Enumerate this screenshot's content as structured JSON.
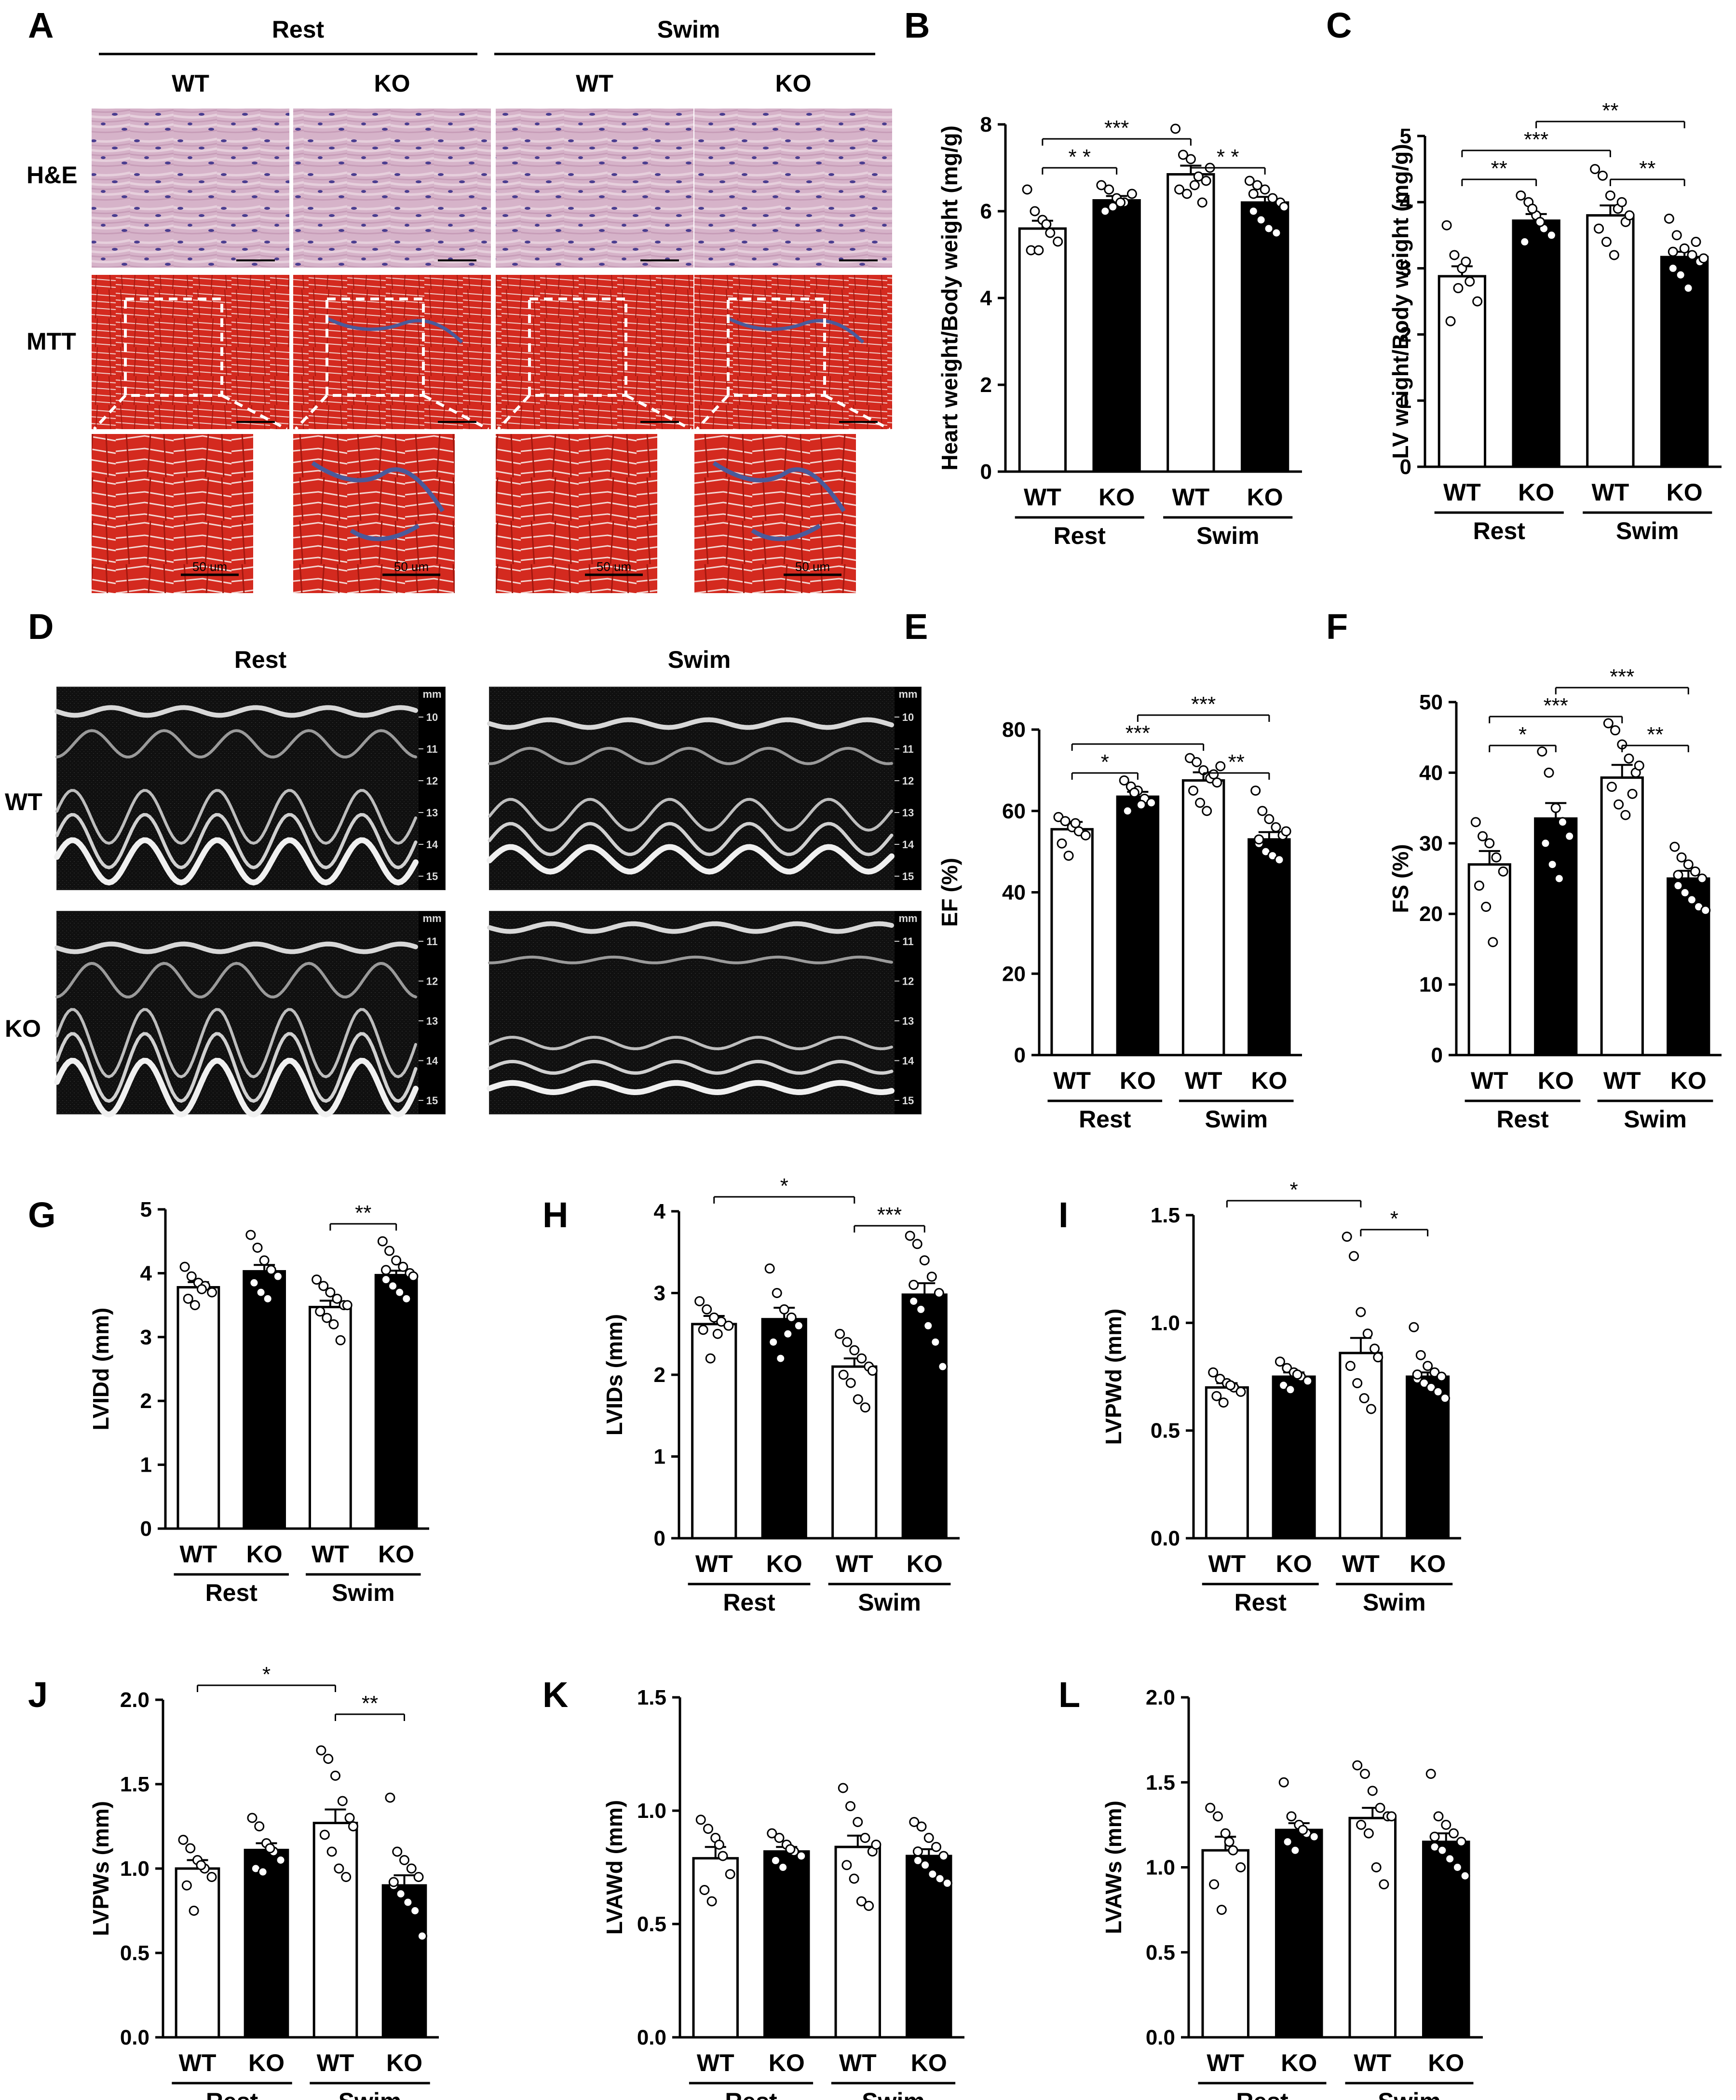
{
  "colors": {
    "wt_fill": "#ffffff",
    "ko_fill": "#000000",
    "axis": "#000000",
    "he_bg": "#d6b3c9",
    "he_nucleus": "#4a3d8f",
    "mtt_bg": "#d42a1f",
    "mtt_fiber": "#b31d14",
    "mtt_collagen": "#4a5a9a",
    "echo_bg": "#0b0b0b",
    "echo_wall": "#e8e8e8"
  },
  "panelA": {
    "label": "A",
    "groups": [
      "Rest",
      "Swim"
    ],
    "columns": [
      "WT",
      "KO",
      "WT",
      "KO"
    ],
    "rows": [
      "H&E",
      "MTT"
    ],
    "scale_bar_text": "50 um"
  },
  "panelD": {
    "label": "D",
    "columns": [
      "Rest",
      "Swim"
    ],
    "rows": [
      "WT",
      "KO"
    ],
    "mm_unit": "mm",
    "mm_ticks_top": [
      "10",
      "11",
      "12",
      "13",
      "14",
      "15"
    ],
    "mm_ticks_bottom_rest": [
      "11",
      "12",
      "13",
      "14",
      "15"
    ],
    "mm_ticks_bottom_swim": [
      "11",
      "12",
      "13",
      "14",
      "15"
    ]
  },
  "chart_data": [
    {
      "id": "B",
      "label": "B",
      "type": "bar",
      "ylabel": "Heart weight/Body weight (mg/g)",
      "ylim": [
        0,
        8
      ],
      "yticks": [
        "0",
        "2",
        "4",
        "6",
        "8"
      ],
      "categories": [
        "WT",
        "KO",
        "WT",
        "KO"
      ],
      "groups": [
        "Rest",
        "Swim"
      ],
      "values": [
        5.6,
        6.25,
        6.85,
        6.2
      ],
      "sem": [
        0.18,
        0.1,
        0.2,
        0.13
      ],
      "points": [
        [
          6.5,
          6.0,
          5.8,
          5.5,
          5.3,
          5.1,
          5.1,
          5.7
        ],
        [
          6.6,
          6.5,
          6.3,
          6.2,
          6.4,
          6.0,
          6.1,
          6.2
        ],
        [
          7.9,
          7.3,
          7.2,
          6.8,
          6.7,
          6.5,
          6.4,
          6.6,
          6.2,
          7.0
        ],
        [
          6.7,
          6.6,
          6.5,
          6.3,
          6.2,
          6.0,
          5.8,
          5.6,
          5.5,
          6.1,
          6.4
        ]
      ],
      "significance": [
        {
          "from": 0,
          "to": 1,
          "text": "* *",
          "level": 0
        },
        {
          "from": 0,
          "to": 2,
          "text": "***",
          "level": 1
        },
        {
          "from": 2,
          "to": 3,
          "text": "* *",
          "level": 0
        }
      ]
    },
    {
      "id": "C",
      "label": "C",
      "type": "bar",
      "ylabel": "LV weight/Body weight (mg/g)",
      "ylim": [
        0,
        5
      ],
      "yticks": [
        "0",
        "1",
        "2",
        "3",
        "4",
        "5"
      ],
      "categories": [
        "WT",
        "KO",
        "WT",
        "KO"
      ],
      "groups": [
        "Rest",
        "Swim"
      ],
      "values": [
        2.88,
        3.72,
        3.8,
        3.17
      ],
      "sem": [
        0.15,
        0.1,
        0.15,
        0.08
      ],
      "points": [
        [
          3.65,
          3.2,
          3.0,
          2.8,
          2.5,
          2.2,
          2.7,
          3.1
        ],
        [
          4.1,
          4.0,
          3.8,
          3.6,
          3.5,
          3.4,
          3.9,
          3.7
        ],
        [
          4.5,
          4.4,
          4.1,
          3.9,
          3.7,
          3.6,
          3.4,
          3.2,
          4.0,
          3.8
        ],
        [
          3.75,
          3.5,
          3.3,
          3.2,
          3.1,
          3.0,
          2.9,
          2.7,
          3.4,
          3.15,
          3.25
        ]
      ],
      "significance": [
        {
          "from": 0,
          "to": 1,
          "text": "**",
          "level": 0
        },
        {
          "from": 0,
          "to": 2,
          "text": "***",
          "level": 1
        },
        {
          "from": 2,
          "to": 3,
          "text": "**",
          "level": 0
        },
        {
          "from": 1,
          "to": 3,
          "text": "**",
          "level": 2
        }
      ]
    },
    {
      "id": "E",
      "label": "E",
      "type": "bar",
      "ylabel": "EF (%)",
      "ylim": [
        0,
        80
      ],
      "yticks": [
        "0",
        "20",
        "40",
        "60",
        "80"
      ],
      "categories": [
        "WT",
        "KO",
        "WT",
        "KO"
      ],
      "groups": [
        "Rest",
        "Swim"
      ],
      "values": [
        55.5,
        63.5,
        67.5,
        53
      ],
      "sem": [
        1.8,
        1.2,
        2.0,
        1.8
      ],
      "points": [
        [
          58.5,
          57.5,
          56.0,
          55.0,
          54.0,
          52.0,
          49.0,
          57.0
        ],
        [
          67.5,
          66.0,
          65.0,
          63.0,
          62.0,
          60.0,
          64.5,
          61.5
        ],
        [
          73.0,
          72.0,
          70.0,
          68.0,
          67.0,
          65.0,
          62.0,
          60.0,
          69.0,
          71.0
        ],
        [
          65.0,
          60.0,
          58.0,
          56.0,
          54.0,
          52.0,
          50.0,
          49.0,
          48.0,
          55.0,
          53.0
        ]
      ],
      "significance": [
        {
          "from": 0,
          "to": 1,
          "text": "*",
          "level": 0
        },
        {
          "from": 0,
          "to": 2,
          "text": "***",
          "level": 1
        },
        {
          "from": 2,
          "to": 3,
          "text": "**",
          "level": 0
        },
        {
          "from": 1,
          "to": 3,
          "text": "***",
          "level": 2
        }
      ]
    },
    {
      "id": "F",
      "label": "F",
      "type": "bar",
      "ylabel": "FS (%)",
      "ylim": [
        0,
        50
      ],
      "yticks": [
        "0",
        "10",
        "20",
        "30",
        "40",
        "50"
      ],
      "categories": [
        "WT",
        "KO",
        "WT",
        "KO"
      ],
      "groups": [
        "Rest",
        "Swim"
      ],
      "values": [
        27,
        33.5,
        39.3,
        25
      ],
      "sem": [
        1.9,
        2.2,
        1.8,
        1.1
      ],
      "points": [
        [
          33.0,
          31.0,
          30.0,
          28.0,
          26.0,
          24.0,
          21.0,
          16.0
        ],
        [
          43.0,
          40.0,
          35.0,
          33.0,
          31.0,
          30.0,
          27.0,
          25.0
        ],
        [
          47.0,
          46.0,
          44.0,
          42.0,
          40.0,
          38.0,
          35.5,
          34.0,
          37.0,
          41.0
        ],
        [
          29.5,
          28.0,
          27.0,
          26.0,
          25.0,
          24.0,
          23.0,
          22.0,
          21.0,
          20.5,
          25.5
        ]
      ],
      "significance": [
        {
          "from": 0,
          "to": 1,
          "text": "*",
          "level": 0
        },
        {
          "from": 0,
          "to": 2,
          "text": "***",
          "level": 1
        },
        {
          "from": 2,
          "to": 3,
          "text": "**",
          "level": 0
        },
        {
          "from": 1,
          "to": 3,
          "text": "***",
          "level": 2
        }
      ]
    },
    {
      "id": "G",
      "label": "G",
      "type": "bar",
      "ylabel": "LVIDd (mm)",
      "ylim": [
        0,
        5
      ],
      "yticks": [
        "0",
        "1",
        "2",
        "3",
        "4",
        "5"
      ],
      "categories": [
        "WT",
        "KO",
        "WT",
        "KO"
      ],
      "groups": [
        "Rest",
        "Swim"
      ],
      "values": [
        3.78,
        4.03,
        3.47,
        3.97
      ],
      "sem": [
        0.08,
        0.1,
        0.1,
        0.07
      ],
      "points": [
        [
          4.1,
          3.95,
          3.85,
          3.8,
          3.7,
          3.6,
          3.5,
          3.75
        ],
        [
          4.6,
          4.4,
          4.2,
          4.05,
          3.95,
          3.85,
          3.7,
          3.6
        ],
        [
          3.9,
          3.8,
          3.7,
          3.6,
          3.5,
          3.4,
          3.3,
          3.2,
          2.95,
          3.5
        ],
        [
          4.5,
          4.35,
          4.2,
          4.1,
          4.0,
          3.9,
          3.8,
          3.7,
          3.6,
          3.95,
          4.05
        ]
      ],
      "significance": [
        {
          "from": 2,
          "to": 3,
          "text": "**",
          "level": 0
        }
      ]
    },
    {
      "id": "H",
      "label": "H",
      "type": "bar",
      "ylabel": "LVIDs (mm)",
      "ylim": [
        0,
        4
      ],
      "yticks": [
        "0",
        "1",
        "2",
        "3",
        "4"
      ],
      "categories": [
        "WT",
        "KO",
        "WT",
        "KO"
      ],
      "groups": [
        "Rest",
        "Swim"
      ],
      "values": [
        2.62,
        2.68,
        2.1,
        2.98
      ],
      "sem": [
        0.1,
        0.14,
        0.1,
        0.14
      ],
      "points": [
        [
          2.9,
          2.8,
          2.7,
          2.65,
          2.6,
          2.55,
          2.2,
          2.5
        ],
        [
          3.3,
          3.0,
          2.8,
          2.7,
          2.6,
          2.4,
          2.2,
          2.5
        ],
        [
          2.5,
          2.4,
          2.3,
          2.2,
          2.1,
          2.0,
          1.9,
          1.7,
          1.6,
          2.05
        ],
        [
          3.7,
          3.6,
          3.4,
          3.2,
          3.0,
          2.9,
          2.8,
          2.6,
          2.4,
          2.1,
          3.1
        ]
      ],
      "significance": [
        {
          "from": 0,
          "to": 2,
          "text": "*",
          "level": 1
        },
        {
          "from": 2,
          "to": 3,
          "text": "***",
          "level": 0
        }
      ]
    },
    {
      "id": "I",
      "label": "I",
      "type": "bar",
      "ylabel": "LVPWd (mm)",
      "ylim": [
        0,
        1.5
      ],
      "yticks": [
        "0.0",
        "0.5",
        "1.0",
        "1.5"
      ],
      "categories": [
        "WT",
        "KO",
        "WT",
        "KO"
      ],
      "groups": [
        "Rest",
        "Swim"
      ],
      "values": [
        0.7,
        0.75,
        0.86,
        0.75
      ],
      "sem": [
        0.02,
        0.02,
        0.07,
        0.02
      ],
      "points": [
        [
          0.77,
          0.74,
          0.72,
          0.7,
          0.68,
          0.66,
          0.63,
          0.71
        ],
        [
          0.82,
          0.79,
          0.77,
          0.75,
          0.73,
          0.71,
          0.69,
          0.76
        ],
        [
          1.4,
          1.31,
          1.05,
          0.95,
          0.88,
          0.8,
          0.72,
          0.65,
          0.6,
          0.84
        ],
        [
          0.98,
          0.85,
          0.8,
          0.77,
          0.75,
          0.74,
          0.72,
          0.7,
          0.68,
          0.65,
          0.76
        ]
      ],
      "significance": [
        {
          "from": 0,
          "to": 2,
          "text": "*",
          "level": 1
        },
        {
          "from": 2,
          "to": 3,
          "text": "*",
          "level": 0
        }
      ]
    },
    {
      "id": "J",
      "label": "J",
      "type": "bar",
      "ylabel": "LVPWs (mm)",
      "ylim": [
        0,
        2
      ],
      "yticks": [
        "0.0",
        "0.5",
        "1.0",
        "1.5",
        "2.0"
      ],
      "categories": [
        "WT",
        "KO",
        "WT",
        "KO"
      ],
      "groups": [
        "Rest",
        "Swim"
      ],
      "values": [
        1.0,
        1.11,
        1.27,
        0.9
      ],
      "sem": [
        0.05,
        0.04,
        0.08,
        0.06
      ],
      "points": [
        [
          1.17,
          1.12,
          1.05,
          1.0,
          0.95,
          0.9,
          0.75,
          1.02
        ],
        [
          1.3,
          1.25,
          1.15,
          1.1,
          1.05,
          1.0,
          0.98,
          1.12
        ],
        [
          1.7,
          1.65,
          1.55,
          1.4,
          1.3,
          1.2,
          1.1,
          1.0,
          0.95,
          1.25
        ],
        [
          1.42,
          1.1,
          1.05,
          1.0,
          0.95,
          0.9,
          0.85,
          0.8,
          0.75,
          0.6,
          0.92
        ]
      ],
      "significance": [
        {
          "from": 0,
          "to": 2,
          "text": "*",
          "level": 1
        },
        {
          "from": 2,
          "to": 3,
          "text": "**",
          "level": 0
        }
      ]
    },
    {
      "id": "K",
      "label": "K",
      "type": "bar",
      "ylabel": "LVAWd (mm)",
      "ylim": [
        0,
        1.5
      ],
      "yticks": [
        "0.0",
        "0.5",
        "1.0",
        "1.5"
      ],
      "categories": [
        "WT",
        "KO",
        "WT",
        "KO"
      ],
      "groups": [
        "Rest",
        "Swim"
      ],
      "values": [
        0.79,
        0.82,
        0.84,
        0.8
      ],
      "sem": [
        0.05,
        0.02,
        0.05,
        0.03
      ],
      "points": [
        [
          0.96,
          0.92,
          0.88,
          0.8,
          0.72,
          0.65,
          0.6,
          0.85
        ],
        [
          0.9,
          0.88,
          0.85,
          0.82,
          0.8,
          0.78,
          0.75,
          0.83
        ],
        [
          1.1,
          1.02,
          0.95,
          0.88,
          0.82,
          0.76,
          0.7,
          0.6,
          0.58,
          0.85
        ],
        [
          0.95,
          0.93,
          0.88,
          0.84,
          0.8,
          0.78,
          0.76,
          0.72,
          0.7,
          0.68,
          0.82
        ]
      ],
      "significance": []
    },
    {
      "id": "L",
      "label": "L",
      "type": "bar",
      "ylabel": "LVAWs (mm)",
      "ylim": [
        0,
        2
      ],
      "yticks": [
        "0.0",
        "0.5",
        "1.0",
        "1.5",
        "2.0"
      ],
      "categories": [
        "WT",
        "KO",
        "WT",
        "KO"
      ],
      "groups": [
        "Rest",
        "Swim"
      ],
      "values": [
        1.1,
        1.22,
        1.29,
        1.15
      ],
      "sem": [
        0.08,
        0.04,
        0.06,
        0.05
      ],
      "points": [
        [
          1.35,
          1.3,
          1.2,
          1.1,
          1.0,
          0.9,
          0.75,
          1.15
        ],
        [
          1.5,
          1.3,
          1.25,
          1.2,
          1.18,
          1.15,
          1.1,
          1.22
        ],
        [
          1.6,
          1.55,
          1.45,
          1.35,
          1.3,
          1.25,
          1.2,
          1.0,
          0.9,
          1.3
        ],
        [
          1.55,
          1.3,
          1.25,
          1.2,
          1.15,
          1.12,
          1.1,
          1.05,
          1.0,
          0.95,
          1.18
        ]
      ],
      "significance": []
    }
  ]
}
